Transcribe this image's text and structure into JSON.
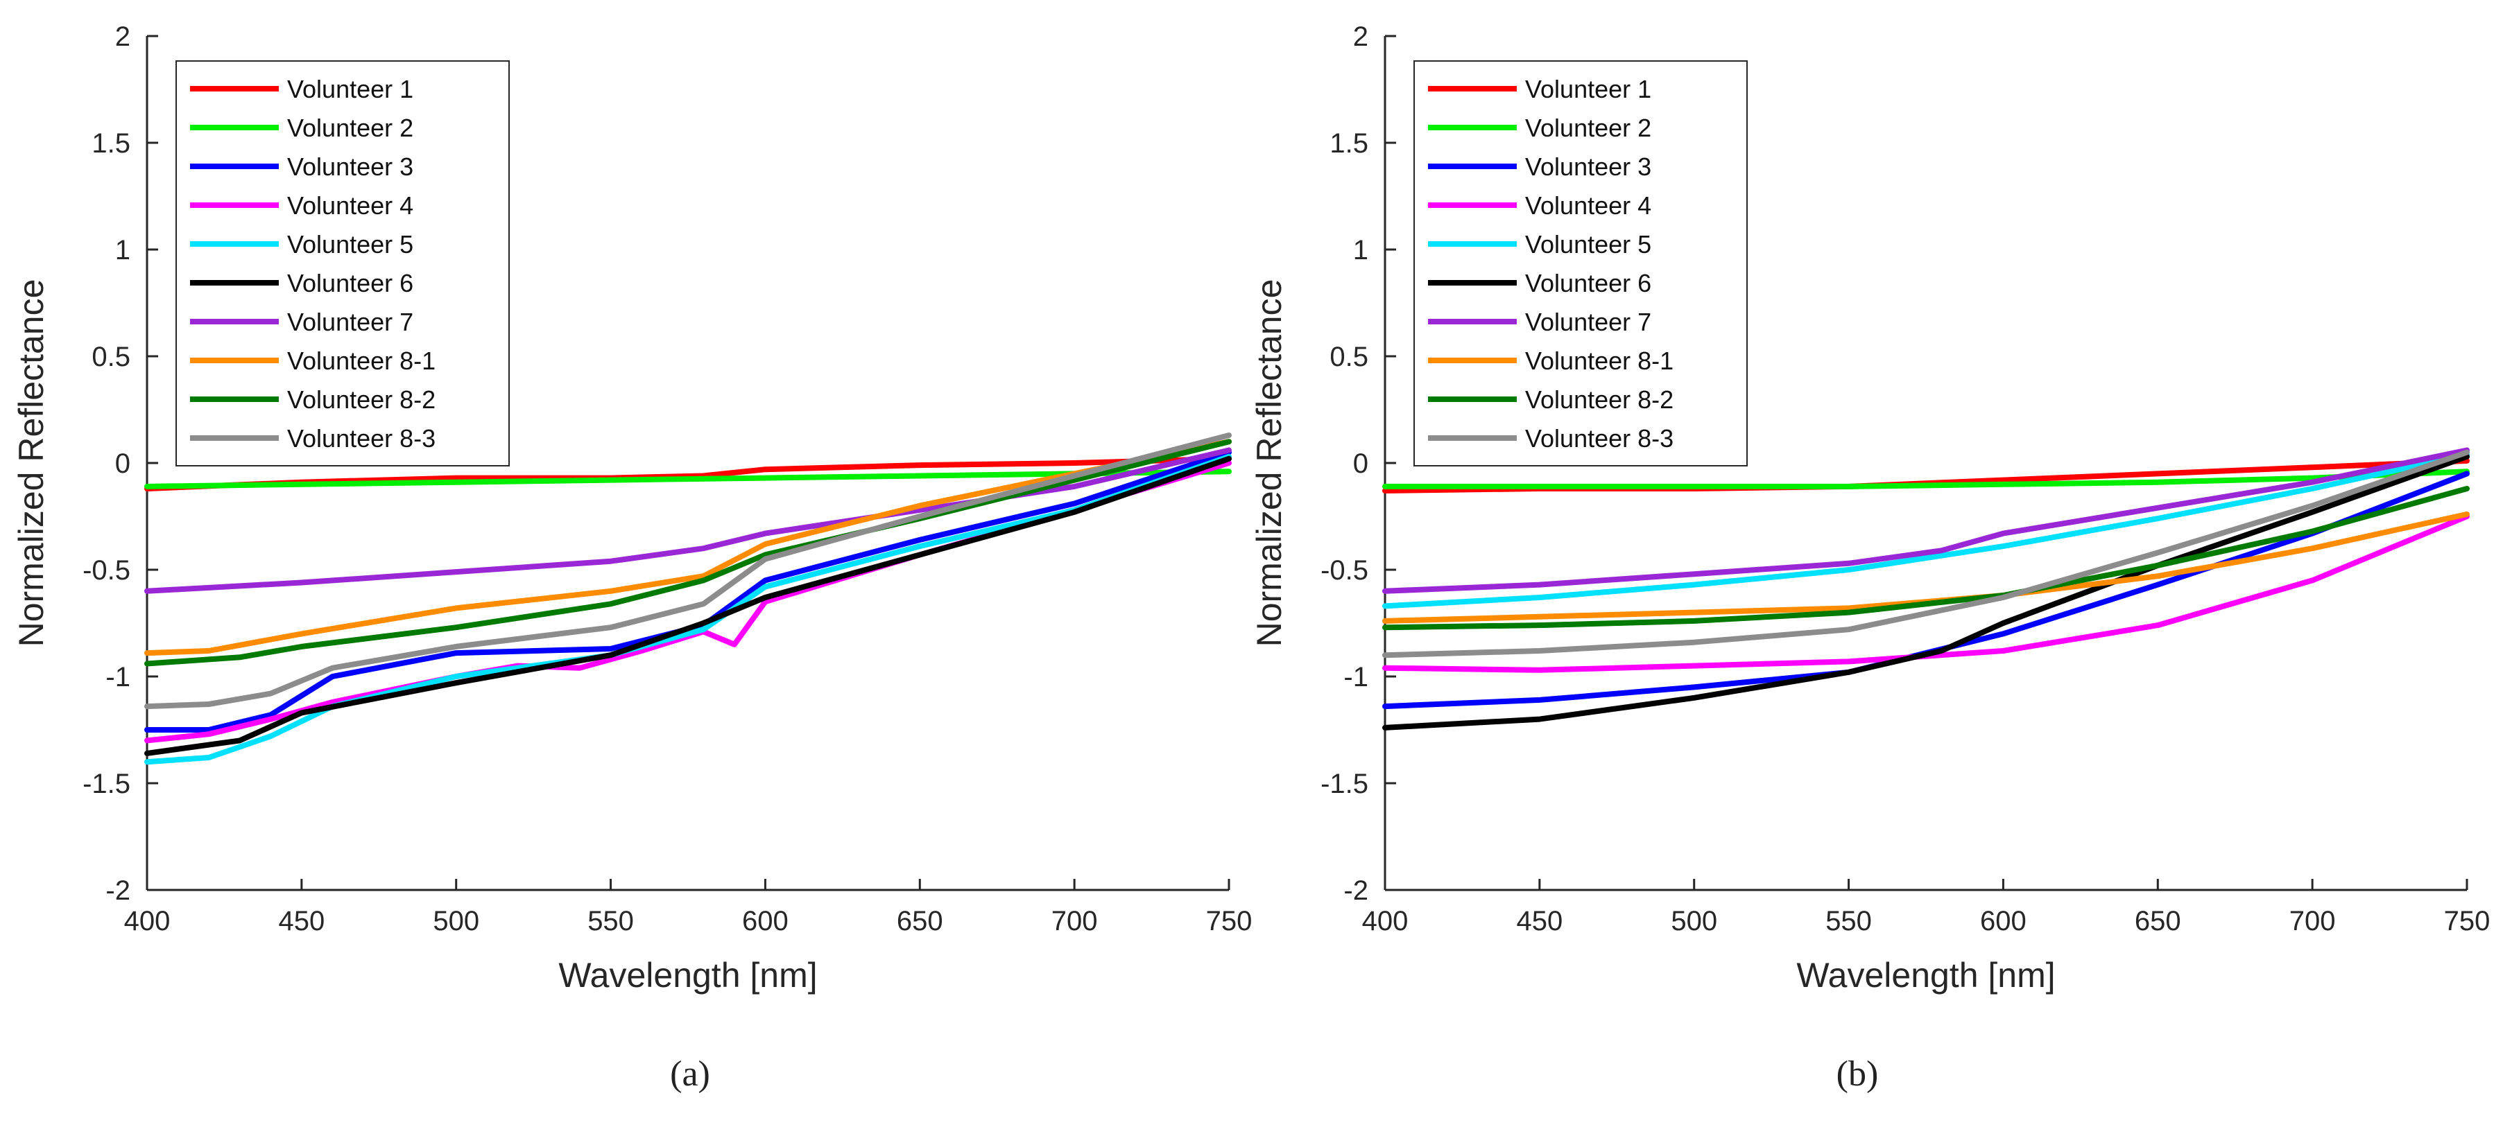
{
  "chart_data": [
    {
      "type": "line",
      "caption": "(a)",
      "xlabel": "Wavelength [nm]",
      "ylabel": "Normalized Reflectance",
      "xlim": [
        400,
        750
      ],
      "ylim": [
        -2,
        2
      ],
      "xticks": [
        400,
        450,
        500,
        550,
        600,
        650,
        700,
        750
      ],
      "yticks": [
        2,
        1.5,
        1,
        0.5,
        0,
        -0.5,
        -1,
        -1.5,
        -2
      ],
      "legend_position": "top-left",
      "series": [
        {
          "name": "Volunteer 1",
          "color": "#ff0000",
          "x": [
            400,
            450,
            500,
            550,
            580,
            600,
            650,
            700,
            750
          ],
          "values": [
            -0.12,
            -0.09,
            -0.07,
            -0.07,
            -0.06,
            -0.03,
            -0.01,
            0.0,
            0.02
          ]
        },
        {
          "name": "Volunteer 2",
          "color": "#00ee00",
          "x": [
            400,
            450,
            500,
            550,
            600,
            650,
            700,
            750
          ],
          "values": [
            -0.11,
            -0.1,
            -0.09,
            -0.08,
            -0.07,
            -0.06,
            -0.05,
            -0.04
          ]
        },
        {
          "name": "Volunteer 3",
          "color": "#0000ff",
          "x": [
            400,
            420,
            440,
            460,
            500,
            550,
            580,
            600,
            650,
            700,
            750
          ],
          "values": [
            -1.25,
            -1.25,
            -1.18,
            -1.0,
            -0.89,
            -0.87,
            -0.76,
            -0.55,
            -0.36,
            -0.19,
            0.05
          ]
        },
        {
          "name": "Volunteer 4",
          "color": "#ff00ff",
          "x": [
            400,
            420,
            440,
            460,
            500,
            520,
            540,
            560,
            580,
            590,
            600,
            650,
            700,
            750
          ],
          "values": [
            -1.3,
            -1.27,
            -1.2,
            -1.12,
            -1.0,
            -0.95,
            -0.96,
            -0.88,
            -0.79,
            -0.85,
            -0.65,
            -0.43,
            -0.22,
            0.0
          ]
        },
        {
          "name": "Volunteer 5",
          "color": "#00e0ff",
          "x": [
            400,
            420,
            440,
            460,
            500,
            550,
            580,
            600,
            650,
            700,
            750
          ],
          "values": [
            -1.4,
            -1.38,
            -1.28,
            -1.14,
            -1.0,
            -0.9,
            -0.78,
            -0.58,
            -0.39,
            -0.22,
            0.03
          ]
        },
        {
          "name": "Volunteer 6",
          "color": "#000000",
          "x": [
            400,
            430,
            450,
            500,
            550,
            580,
            600,
            650,
            700,
            750
          ],
          "values": [
            -1.36,
            -1.3,
            -1.17,
            -1.03,
            -0.9,
            -0.75,
            -0.63,
            -0.43,
            -0.23,
            0.02
          ]
        },
        {
          "name": "Volunteer 7",
          "color": "#9a27d6",
          "x": [
            400,
            450,
            500,
            550,
            580,
            600,
            650,
            700,
            750
          ],
          "values": [
            -0.6,
            -0.56,
            -0.51,
            -0.46,
            -0.4,
            -0.33,
            -0.22,
            -0.11,
            0.06
          ]
        },
        {
          "name": "Volunteer 8-1",
          "color": "#ff8c00",
          "x": [
            400,
            420,
            450,
            500,
            550,
            580,
            600,
            650,
            700,
            750
          ],
          "values": [
            -0.89,
            -0.88,
            -0.8,
            -0.68,
            -0.6,
            -0.53,
            -0.38,
            -0.2,
            -0.05,
            0.1
          ]
        },
        {
          "name": "Volunteer 8-2",
          "color": "#007a00",
          "x": [
            400,
            430,
            450,
            500,
            550,
            580,
            600,
            650,
            700,
            750
          ],
          "values": [
            -0.94,
            -0.91,
            -0.86,
            -0.77,
            -0.66,
            -0.55,
            -0.43,
            -0.26,
            -0.08,
            0.1
          ]
        },
        {
          "name": "Volunteer 8-3",
          "color": "#8c8c8c",
          "x": [
            400,
            420,
            440,
            460,
            500,
            550,
            580,
            600,
            650,
            700,
            750
          ],
          "values": [
            -1.14,
            -1.13,
            -1.08,
            -0.96,
            -0.86,
            -0.77,
            -0.66,
            -0.45,
            -0.25,
            -0.06,
            0.13
          ]
        }
      ]
    },
    {
      "type": "line",
      "caption": "(b)",
      "xlabel": "Wavelength [nm]",
      "ylabel": "Normalized Reflectance",
      "xlim": [
        400,
        750
      ],
      "ylim": [
        -2,
        2
      ],
      "xticks": [
        400,
        450,
        500,
        550,
        600,
        650,
        700,
        750
      ],
      "yticks": [
        2,
        1.5,
        1,
        0.5,
        0,
        -0.5,
        -1,
        -1.5,
        -2
      ],
      "legend_position": "top-left",
      "series": [
        {
          "name": "Volunteer 1",
          "color": "#ff0000",
          "x": [
            400,
            450,
            500,
            550,
            600,
            650,
            700,
            750
          ],
          "values": [
            -0.13,
            -0.12,
            -0.12,
            -0.11,
            -0.08,
            -0.05,
            -0.02,
            0.01
          ]
        },
        {
          "name": "Volunteer 2",
          "color": "#00ee00",
          "x": [
            400,
            450,
            500,
            550,
            600,
            650,
            700,
            750
          ],
          "values": [
            -0.11,
            -0.11,
            -0.11,
            -0.11,
            -0.1,
            -0.09,
            -0.07,
            -0.04
          ]
        },
        {
          "name": "Volunteer 3",
          "color": "#0000ff",
          "x": [
            400,
            450,
            500,
            550,
            600,
            650,
            700,
            750
          ],
          "values": [
            -1.14,
            -1.11,
            -1.05,
            -0.98,
            -0.8,
            -0.57,
            -0.33,
            -0.05
          ]
        },
        {
          "name": "Volunteer 4",
          "color": "#ff00ff",
          "x": [
            400,
            450,
            500,
            550,
            600,
            650,
            700,
            750
          ],
          "values": [
            -0.96,
            -0.97,
            -0.95,
            -0.93,
            -0.88,
            -0.76,
            -0.55,
            -0.25
          ]
        },
        {
          "name": "Volunteer 5",
          "color": "#00e0ff",
          "x": [
            400,
            450,
            500,
            550,
            600,
            650,
            700,
            750
          ],
          "values": [
            -0.67,
            -0.63,
            -0.57,
            -0.5,
            -0.39,
            -0.26,
            -0.12,
            0.04
          ]
        },
        {
          "name": "Volunteer 6",
          "color": "#000000",
          "x": [
            400,
            450,
            500,
            550,
            580,
            600,
            650,
            700,
            750
          ],
          "values": [
            -1.24,
            -1.2,
            -1.1,
            -0.98,
            -0.88,
            -0.75,
            -0.48,
            -0.23,
            0.03
          ]
        },
        {
          "name": "Volunteer 7",
          "color": "#9a27d6",
          "x": [
            400,
            450,
            500,
            550,
            580,
            600,
            650,
            700,
            750
          ],
          "values": [
            -0.6,
            -0.57,
            -0.52,
            -0.47,
            -0.41,
            -0.33,
            -0.21,
            -0.09,
            0.06
          ]
        },
        {
          "name": "Volunteer 8-1",
          "color": "#ff8c00",
          "x": [
            400,
            450,
            500,
            550,
            600,
            650,
            700,
            750
          ],
          "values": [
            -0.74,
            -0.72,
            -0.7,
            -0.68,
            -0.62,
            -0.53,
            -0.4,
            -0.24
          ]
        },
        {
          "name": "Volunteer 8-2",
          "color": "#007a00",
          "x": [
            400,
            450,
            500,
            550,
            600,
            650,
            700,
            750
          ],
          "values": [
            -0.77,
            -0.76,
            -0.74,
            -0.7,
            -0.62,
            -0.48,
            -0.32,
            -0.12
          ]
        },
        {
          "name": "Volunteer 8-3",
          "color": "#8c8c8c",
          "x": [
            400,
            450,
            500,
            550,
            600,
            650,
            700,
            750
          ],
          "values": [
            -0.9,
            -0.88,
            -0.84,
            -0.78,
            -0.63,
            -0.42,
            -0.2,
            0.05
          ]
        }
      ]
    }
  ]
}
